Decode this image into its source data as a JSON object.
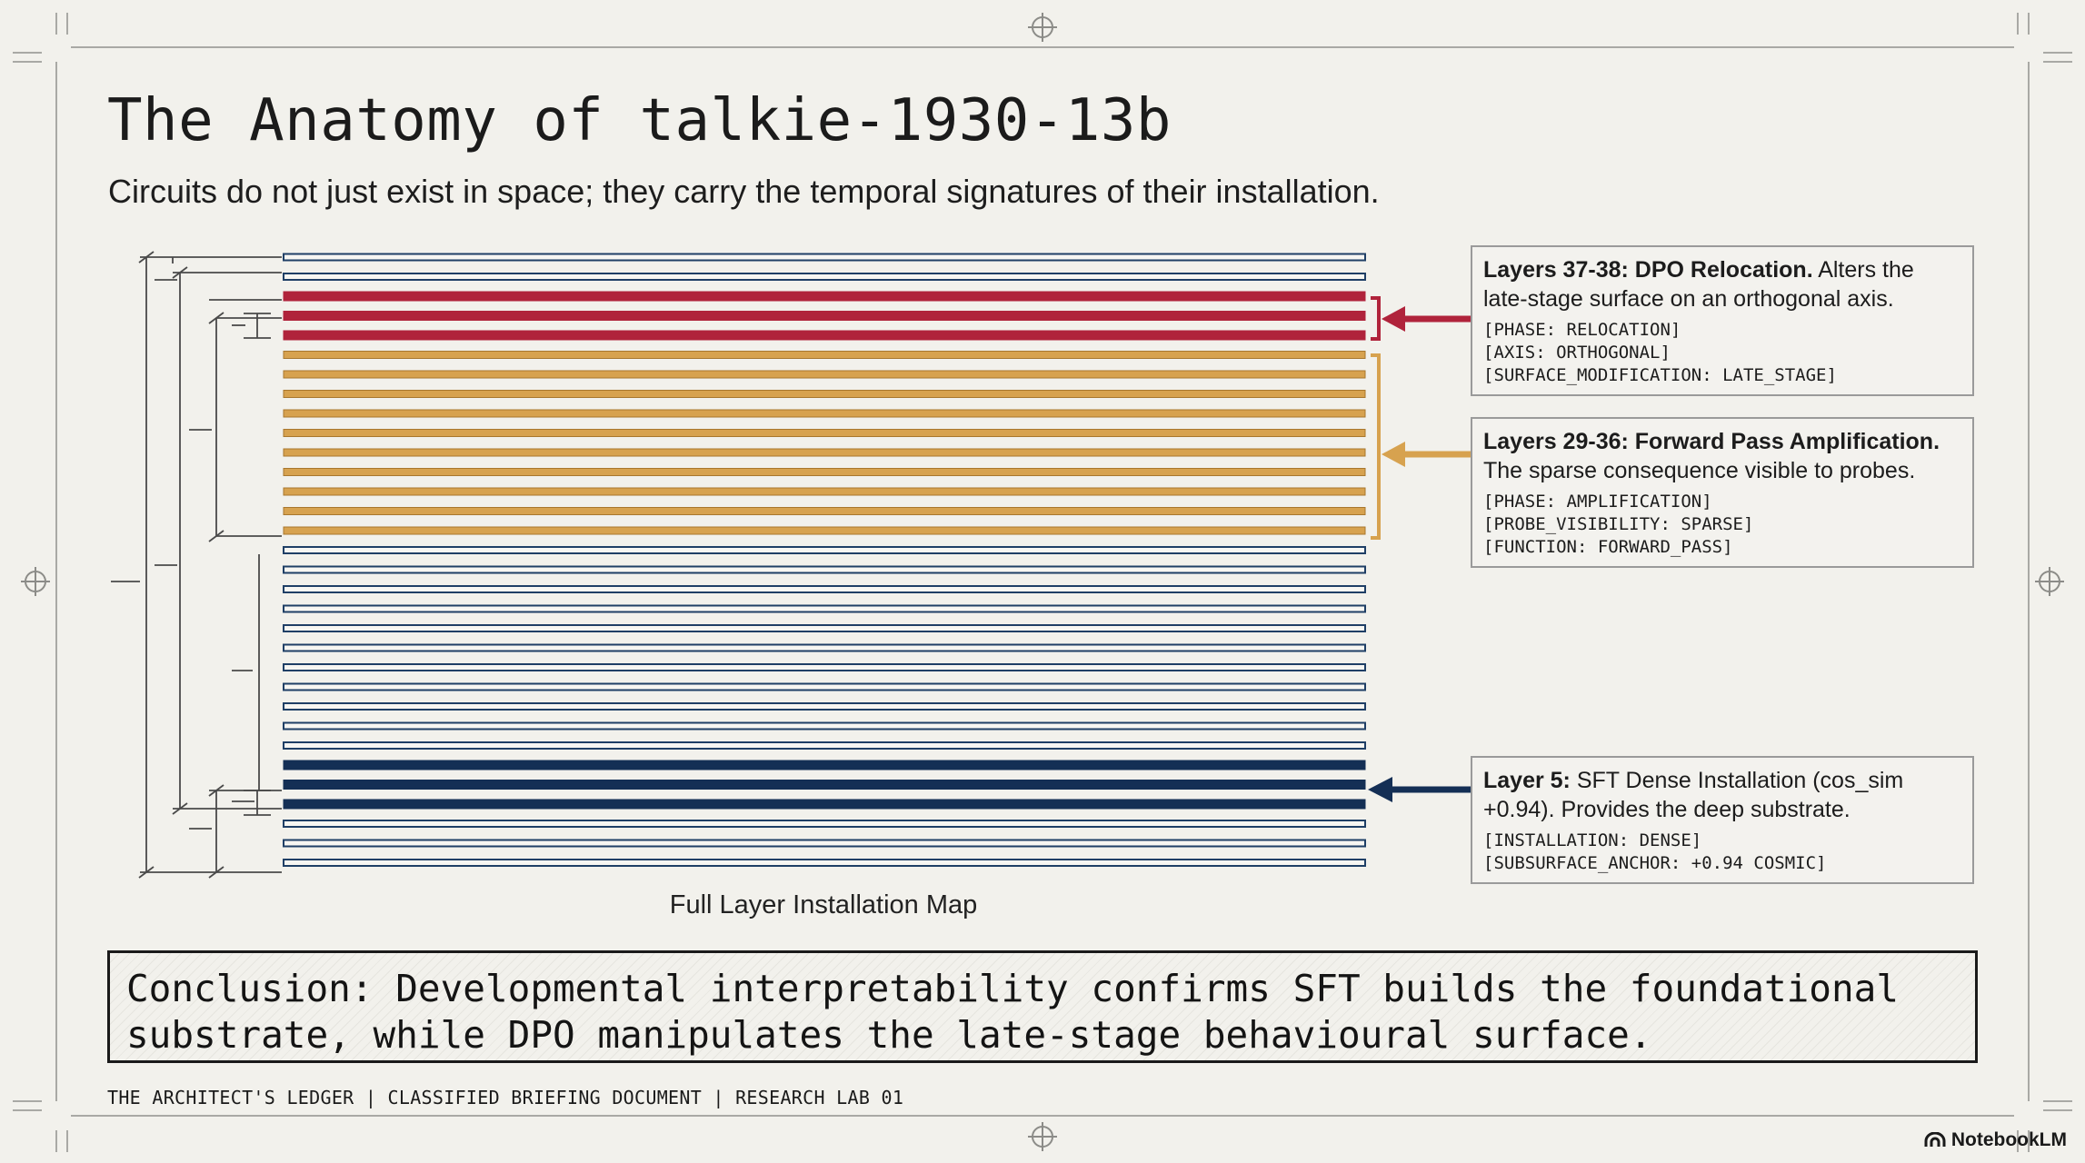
{
  "slide": {
    "title": "The Anatomy of talkie-1930-13b",
    "subtitle": "Circuits do not just exist in space; they carry the temporal signatures of their installation.",
    "map_caption": "Full Layer Installation Map"
  },
  "colors": {
    "background": "#f2f1ec",
    "relocation": "#b0233b",
    "amplification": "#d7a24f",
    "sft_dense": "#142f55",
    "layer_outline": "#1f3f66"
  },
  "layer_stack": {
    "layers_top_to_bottom": [
      "outline",
      "outline",
      "relocation",
      "relocation",
      "relocation",
      "amplification",
      "amplification",
      "amplification",
      "amplification",
      "amplification",
      "amplification",
      "amplification",
      "amplification",
      "amplification",
      "amplification",
      "outline",
      "outline",
      "outline",
      "outline",
      "outline",
      "outline",
      "outline",
      "outline",
      "outline",
      "outline",
      "outline",
      "sft_dense",
      "sft_dense",
      "sft_dense",
      "outline",
      "outline",
      "outline"
    ]
  },
  "callouts": [
    {
      "id": "relocation",
      "heading": "Layers 37-38: DPO Relocation.",
      "text": " Alters the late-stage surface on an orthogonal axis.",
      "tags": [
        "[PHASE: RELOCATION]",
        "[AXIS: ORTHOGONAL]",
        "[SURFACE_MODIFICATION: LATE_STAGE]"
      ],
      "arrow_color": "#b0233b"
    },
    {
      "id": "amplification",
      "heading": "Layers 29-36: Forward Pass Amplification.",
      "text": " The sparse consequence visible to probes.",
      "tags": [
        "[PHASE: AMPLIFICATION]",
        "[PROBE_VISIBILITY: SPARSE]",
        "[FUNCTION: FORWARD_PASS]"
      ],
      "arrow_color": "#d7a24f"
    },
    {
      "id": "sft",
      "heading": "Layer 5:",
      "text": " SFT Dense Installation (cos_sim +0.94). Provides the deep substrate.",
      "tags": [
        "[INSTALLATION: DENSE]",
        "[SUBSURFACE_ANCHOR: +0.94 COSMIC]"
      ],
      "arrow_color": "#142f55"
    }
  ],
  "conclusion": "Conclusion: Developmental interpretability confirms SFT builds the foundational substrate, while DPO manipulates the late-stage behavioural surface.",
  "footer": "THE ARCHITECT'S LEDGER | CLASSIFIED BRIEFING DOCUMENT | RESEARCH LAB 01",
  "brand": "NotebookLM"
}
